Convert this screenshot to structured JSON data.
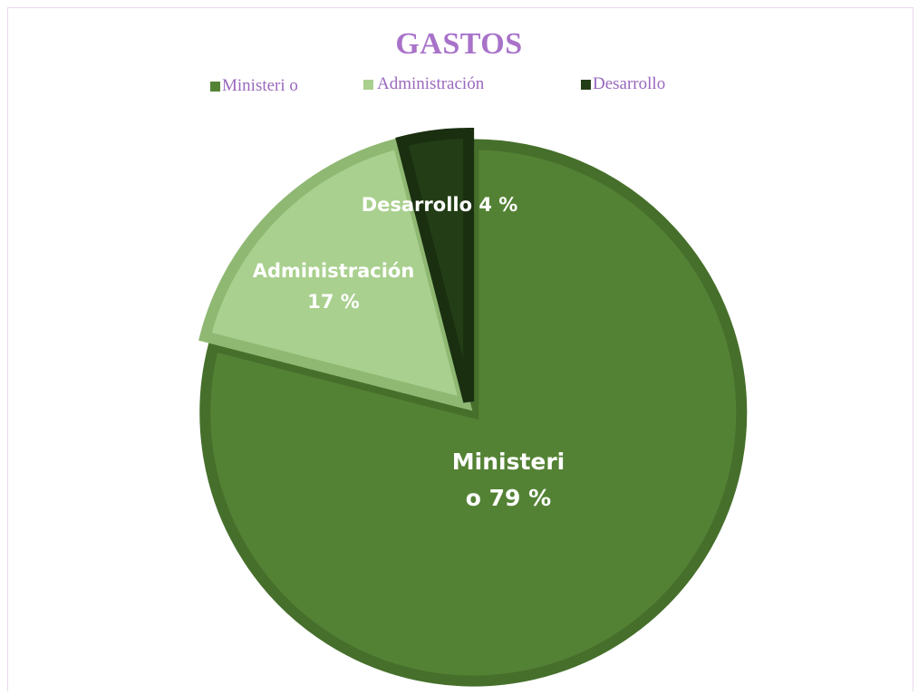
{
  "chart_data": {
    "type": "pie",
    "title": "GASTOS",
    "categories": [
      "Ministerio",
      "Administración",
      "Desarrollo"
    ],
    "values": [
      79,
      17,
      4
    ],
    "unit": "%",
    "colors": [
      "#548235",
      "#a9d08e",
      "#233e16"
    ],
    "legend": {
      "placement": "top",
      "entries": [
        "Ministeri o",
        "Administración",
        "Desarrollo"
      ]
    },
    "data_labels": [
      {
        "lines": [
          "Ministeri",
          "o 79 %"
        ]
      },
      {
        "lines": [
          "Administración",
          "17 %"
        ]
      },
      {
        "lines": [
          "Desarrollo 4 %"
        ]
      }
    ]
  }
}
